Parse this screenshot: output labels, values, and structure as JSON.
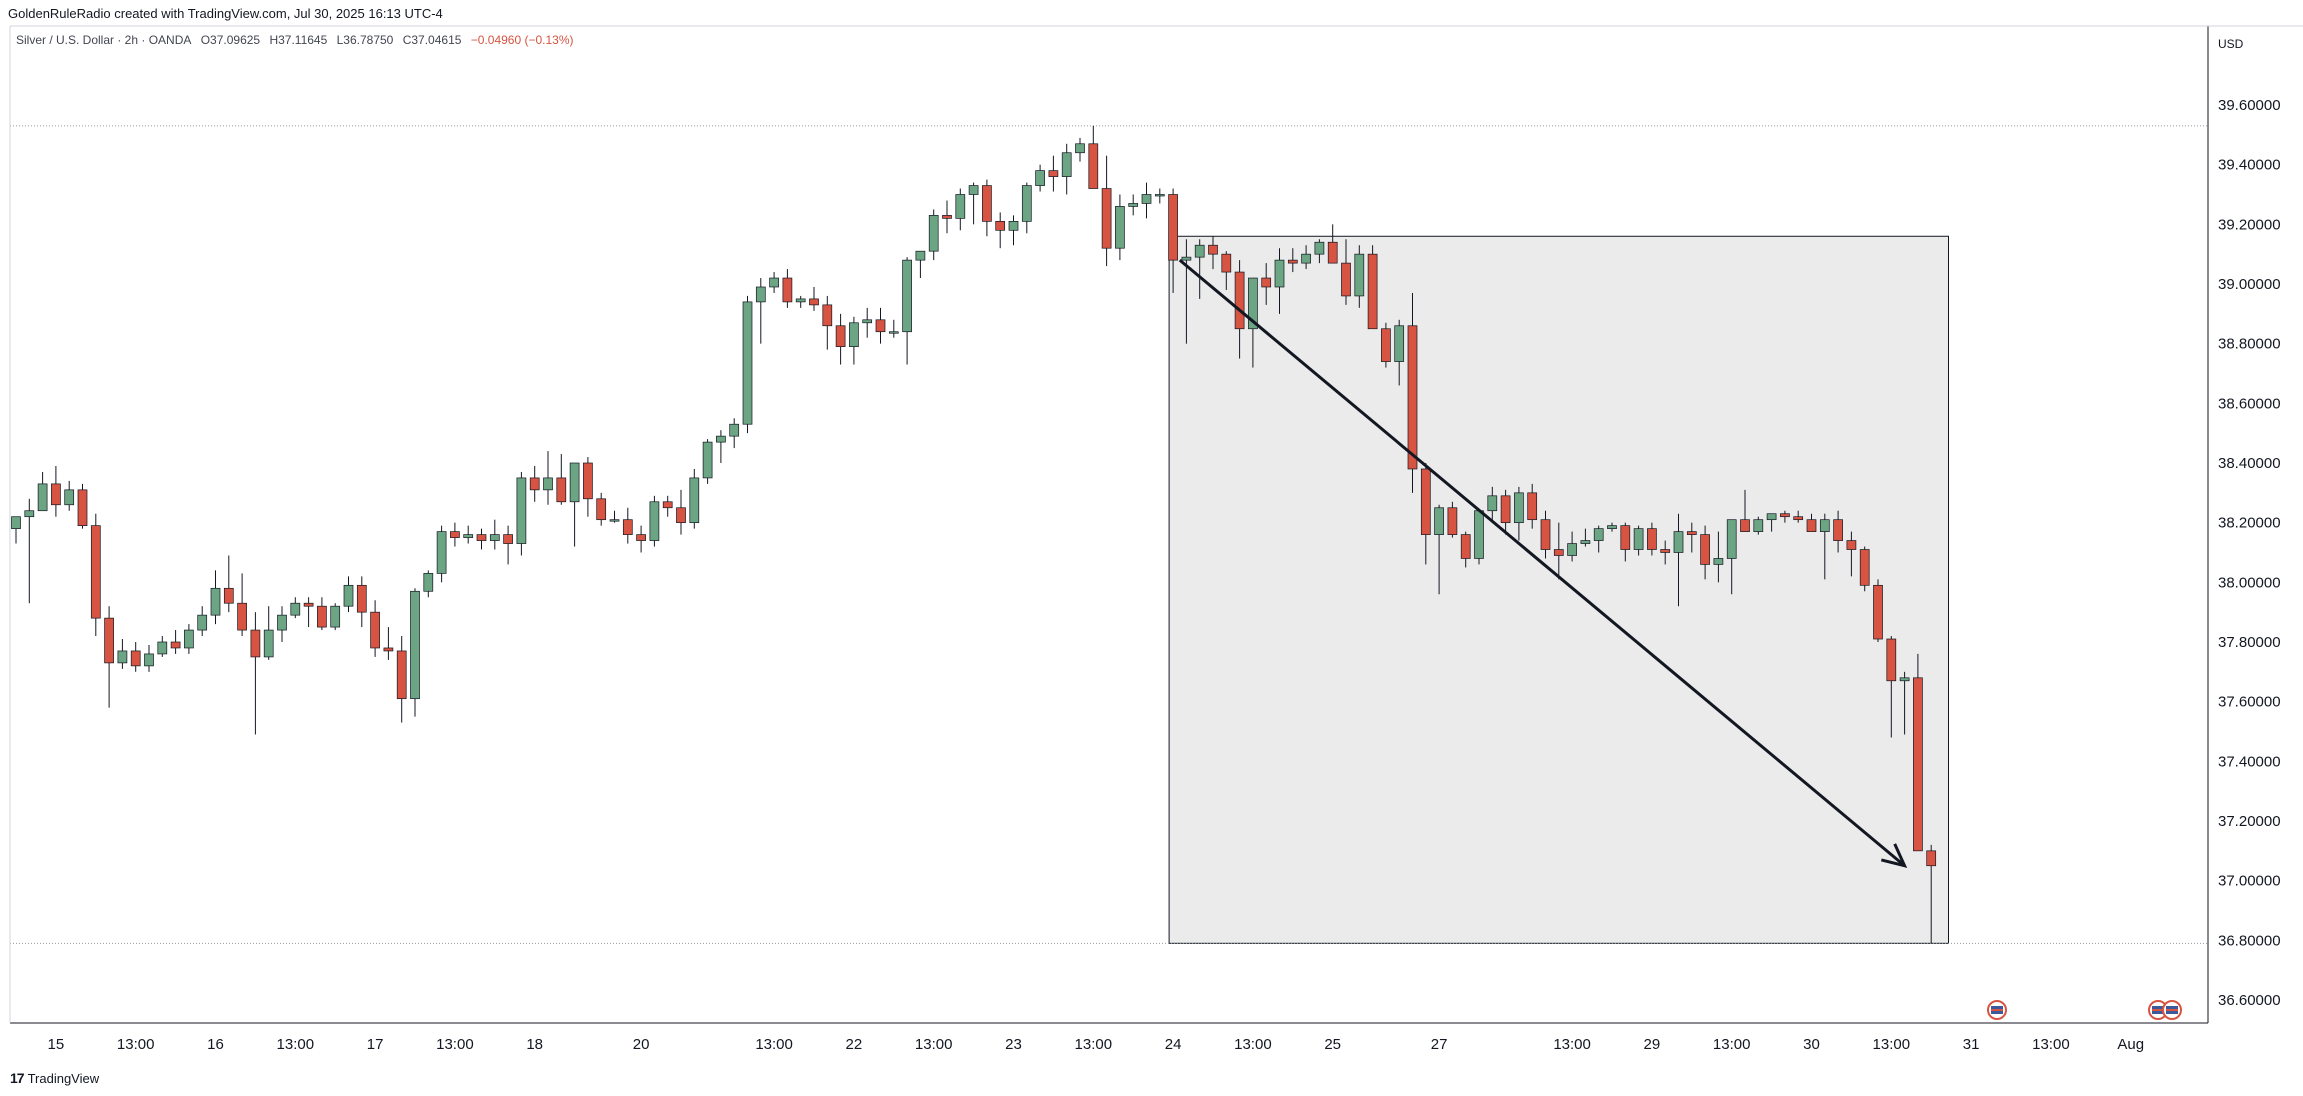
{
  "header": {
    "attribution": "GoldenRuleRadio created with TradingView.com, Jul 30, 2025 16:13 UTC-4"
  },
  "legend": {
    "symbol": "Silver / U.S. Dollar · 2h · OANDA",
    "open": "O37.09625",
    "high": "H37.11645",
    "low": "L36.78750",
    "close": "C37.04615",
    "change": "−0.04960 (−0.13%)"
  },
  "footer": {
    "brand": "TradingView",
    "logo": "17"
  },
  "colors": {
    "up": "#6ba583",
    "down": "#d75442",
    "box_fill": "#ebebeb",
    "arrow": "#131722"
  },
  "chart_data": {
    "type": "candlestick",
    "currency": "USD",
    "ylim": [
      36.5,
      39.8
    ],
    "yticks": [
      "39.60000",
      "39.40000",
      "39.20000",
      "39.00000",
      "38.80000",
      "38.60000",
      "38.40000",
      "38.20000",
      "38.00000",
      "37.80000",
      "37.60000",
      "37.40000",
      "37.20000",
      "37.00000",
      "36.80000",
      "36.60000"
    ],
    "xticks": [
      {
        "label": "15",
        "bar": 3
      },
      {
        "label": "13:00",
        "bar": 9
      },
      {
        "label": "16",
        "bar": 15
      },
      {
        "label": "13:00",
        "bar": 21
      },
      {
        "label": "17",
        "bar": 27
      },
      {
        "label": "13:00",
        "bar": 33
      },
      {
        "label": "18",
        "bar": 39
      },
      {
        "label": "20",
        "bar": 47
      },
      {
        "label": "13:00",
        "bar": 57
      },
      {
        "label": "22",
        "bar": 63
      },
      {
        "label": "13:00",
        "bar": 69
      },
      {
        "label": "23",
        "bar": 75
      },
      {
        "label": "13:00",
        "bar": 81
      },
      {
        "label": "24",
        "bar": 87
      },
      {
        "label": "13:00",
        "bar": 93
      },
      {
        "label": "25",
        "bar": 99
      },
      {
        "label": "27",
        "bar": 107
      },
      {
        "label": "13:00",
        "bar": 117
      },
      {
        "label": "29",
        "bar": 123
      },
      {
        "label": "13:00",
        "bar": 129
      },
      {
        "label": "30",
        "bar": 135
      },
      {
        "label": "13:00",
        "bar": 141
      },
      {
        "label": "31",
        "bar": 147
      },
      {
        "label": "13:00",
        "bar": 153
      },
      {
        "label": "Aug",
        "bar": 159
      }
    ],
    "reference_lines": [
      39.53,
      36.79
    ],
    "candles": [
      [
        38.18,
        38.22,
        38.13,
        38.22
      ],
      [
        38.22,
        38.28,
        37.93,
        38.24
      ],
      [
        38.24,
        38.37,
        38.24,
        38.33
      ],
      [
        38.33,
        38.39,
        38.22,
        38.26
      ],
      [
        38.26,
        38.34,
        38.24,
        38.31
      ],
      [
        38.31,
        38.33,
        38.18,
        38.19
      ],
      [
        38.19,
        38.23,
        37.82,
        37.88
      ],
      [
        37.88,
        37.92,
        37.58,
        37.73
      ],
      [
        37.73,
        37.81,
        37.71,
        37.77
      ],
      [
        37.77,
        37.8,
        37.7,
        37.72
      ],
      [
        37.72,
        37.79,
        37.7,
        37.76
      ],
      [
        37.76,
        37.82,
        37.75,
        37.8
      ],
      [
        37.8,
        37.84,
        37.76,
        37.78
      ],
      [
        37.78,
        37.86,
        37.76,
        37.84
      ],
      [
        37.84,
        37.92,
        37.82,
        37.89
      ],
      [
        37.89,
        38.04,
        37.86,
        37.98
      ],
      [
        37.98,
        38.09,
        37.9,
        37.93
      ],
      [
        37.93,
        38.03,
        37.82,
        37.84
      ],
      [
        37.84,
        37.9,
        37.49,
        37.75
      ],
      [
        37.75,
        37.92,
        37.74,
        37.84
      ],
      [
        37.84,
        37.92,
        37.8,
        37.89
      ],
      [
        37.89,
        37.95,
        37.88,
        37.93
      ],
      [
        37.93,
        37.95,
        37.85,
        37.92
      ],
      [
        37.92,
        37.95,
        37.84,
        37.85
      ],
      [
        37.85,
        37.93,
        37.84,
        37.92
      ],
      [
        37.92,
        38.02,
        37.9,
        37.99
      ],
      [
        37.99,
        38.02,
        37.85,
        37.9
      ],
      [
        37.9,
        37.94,
        37.75,
        37.78
      ],
      [
        37.78,
        37.85,
        37.74,
        37.77
      ],
      [
        37.77,
        37.82,
        37.53,
        37.61
      ],
      [
        37.61,
        37.98,
        37.55,
        37.97
      ],
      [
        37.97,
        38.04,
        37.95,
        38.03
      ],
      [
        38.03,
        38.19,
        38.0,
        38.17
      ],
      [
        38.17,
        38.2,
        38.12,
        38.15
      ],
      [
        38.15,
        38.19,
        38.13,
        38.16
      ],
      [
        38.16,
        38.18,
        38.11,
        38.14
      ],
      [
        38.14,
        38.21,
        38.11,
        38.16
      ],
      [
        38.16,
        38.19,
        38.06,
        38.13
      ],
      [
        38.13,
        38.37,
        38.09,
        38.35
      ],
      [
        38.35,
        38.39,
        38.27,
        38.31
      ],
      [
        38.31,
        38.44,
        38.26,
        38.35
      ],
      [
        38.35,
        38.43,
        38.26,
        38.27
      ],
      [
        38.27,
        38.4,
        38.12,
        38.4
      ],
      [
        38.4,
        38.42,
        38.22,
        38.28
      ],
      [
        38.28,
        38.3,
        38.19,
        38.21
      ],
      [
        38.21,
        38.24,
        38.2,
        38.21
      ],
      [
        38.21,
        38.25,
        38.13,
        38.16
      ],
      [
        38.16,
        38.19,
        38.1,
        38.14
      ],
      [
        38.14,
        38.29,
        38.12,
        38.27
      ],
      [
        38.27,
        38.29,
        38.22,
        38.25
      ],
      [
        38.25,
        38.31,
        38.16,
        38.2
      ],
      [
        38.2,
        38.38,
        38.18,
        38.35
      ],
      [
        38.35,
        38.48,
        38.33,
        38.47
      ],
      [
        38.47,
        38.51,
        38.4,
        38.49
      ],
      [
        38.49,
        38.55,
        38.45,
        38.53
      ],
      [
        38.53,
        38.96,
        38.5,
        38.94
      ],
      [
        38.94,
        39.02,
        38.8,
        38.99
      ],
      [
        38.99,
        39.04,
        38.97,
        39.02
      ],
      [
        39.02,
        39.05,
        38.92,
        38.94
      ],
      [
        38.94,
        38.96,
        38.92,
        38.95
      ],
      [
        38.95,
        38.99,
        38.91,
        38.93
      ],
      [
        38.93,
        38.96,
        38.78,
        38.86
      ],
      [
        38.86,
        38.9,
        38.73,
        38.79
      ],
      [
        38.79,
        38.89,
        38.73,
        38.87
      ],
      [
        38.87,
        38.92,
        38.82,
        38.88
      ],
      [
        38.88,
        38.92,
        38.8,
        38.84
      ],
      [
        38.84,
        38.88,
        38.82,
        38.84
      ],
      [
        38.84,
        39.09,
        38.73,
        39.08
      ],
      [
        39.08,
        39.11,
        39.02,
        39.11
      ],
      [
        39.11,
        39.25,
        39.08,
        39.23
      ],
      [
        39.23,
        39.28,
        39.17,
        39.22
      ],
      [
        39.22,
        39.32,
        39.18,
        39.3
      ],
      [
        39.3,
        39.34,
        39.2,
        39.33
      ],
      [
        39.33,
        39.35,
        39.16,
        39.21
      ],
      [
        39.21,
        39.24,
        39.12,
        39.18
      ],
      [
        39.18,
        39.23,
        39.13,
        39.21
      ],
      [
        39.21,
        39.34,
        39.17,
        39.33
      ],
      [
        39.33,
        39.4,
        39.31,
        39.38
      ],
      [
        39.38,
        39.43,
        39.31,
        39.36
      ],
      [
        39.36,
        39.47,
        39.3,
        39.44
      ],
      [
        39.44,
        39.49,
        39.41,
        39.47
      ],
      [
        39.47,
        39.53,
        39.34,
        39.32
      ],
      [
        39.32,
        39.43,
        39.06,
        39.12
      ],
      [
        39.12,
        39.3,
        39.08,
        39.26
      ],
      [
        39.26,
        39.3,
        39.23,
        39.27
      ],
      [
        39.27,
        39.34,
        39.22,
        39.3
      ],
      [
        39.3,
        39.32,
        39.27,
        39.3
      ],
      [
        39.3,
        39.32,
        38.97,
        39.08
      ],
      [
        39.08,
        39.15,
        38.8,
        39.09
      ],
      [
        39.09,
        39.15,
        38.95,
        39.13
      ],
      [
        39.13,
        39.16,
        39.05,
        39.1
      ],
      [
        39.1,
        39.11,
        38.98,
        39.04
      ],
      [
        39.04,
        39.08,
        38.75,
        38.85
      ],
      [
        38.85,
        39.02,
        38.72,
        39.02
      ],
      [
        39.02,
        39.07,
        38.93,
        38.99
      ],
      [
        38.99,
        39.12,
        38.9,
        39.08
      ],
      [
        39.08,
        39.12,
        39.04,
        39.07
      ],
      [
        39.07,
        39.13,
        39.05,
        39.1
      ],
      [
        39.1,
        39.15,
        39.07,
        39.14
      ],
      [
        39.14,
        39.2,
        39.08,
        39.07
      ],
      [
        39.07,
        39.15,
        38.93,
        38.96
      ],
      [
        38.96,
        39.13,
        38.92,
        39.1
      ],
      [
        39.1,
        39.13,
        38.88,
        38.85
      ],
      [
        38.85,
        38.87,
        38.72,
        38.74
      ],
      [
        38.74,
        38.88,
        38.66,
        38.86
      ],
      [
        38.86,
        38.97,
        38.3,
        38.38
      ],
      [
        38.38,
        38.4,
        38.06,
        38.16
      ],
      [
        38.16,
        38.26,
        37.96,
        38.25
      ],
      [
        38.25,
        38.27,
        38.15,
        38.16
      ],
      [
        38.16,
        38.17,
        38.05,
        38.08
      ],
      [
        38.08,
        38.24,
        38.06,
        38.24
      ],
      [
        38.24,
        38.32,
        38.2,
        38.29
      ],
      [
        38.29,
        38.31,
        38.16,
        38.2
      ],
      [
        38.2,
        38.32,
        38.14,
        38.3
      ],
      [
        38.3,
        38.33,
        38.18,
        38.21
      ],
      [
        38.21,
        38.24,
        38.08,
        38.11
      ],
      [
        38.11,
        38.2,
        38.01,
        38.09
      ],
      [
        38.09,
        38.17,
        38.07,
        38.13
      ],
      [
        38.13,
        38.18,
        38.12,
        38.14
      ],
      [
        38.14,
        38.19,
        38.1,
        38.18
      ],
      [
        38.18,
        38.2,
        38.17,
        38.19
      ],
      [
        38.19,
        38.2,
        38.07,
        38.11
      ],
      [
        38.11,
        38.19,
        38.09,
        38.18
      ],
      [
        38.18,
        38.2,
        38.09,
        38.11
      ],
      [
        38.11,
        38.14,
        38.06,
        38.1
      ],
      [
        38.1,
        38.23,
        37.92,
        38.17
      ],
      [
        38.17,
        38.2,
        38.1,
        38.16
      ],
      [
        38.16,
        38.19,
        38.01,
        38.06
      ],
      [
        38.06,
        38.17,
        38.0,
        38.08
      ],
      [
        38.08,
        38.21,
        37.96,
        38.21
      ],
      [
        38.21,
        38.31,
        38.18,
        38.17
      ],
      [
        38.17,
        38.22,
        38.16,
        38.21
      ],
      [
        38.21,
        38.23,
        38.17,
        38.23
      ],
      [
        38.23,
        38.24,
        38.2,
        38.22
      ],
      [
        38.22,
        38.24,
        38.2,
        38.21
      ],
      [
        38.21,
        38.23,
        38.18,
        38.17
      ],
      [
        38.17,
        38.23,
        38.01,
        38.21
      ],
      [
        38.21,
        38.24,
        38.1,
        38.14
      ],
      [
        38.14,
        38.17,
        38.02,
        38.11
      ],
      [
        38.11,
        38.12,
        37.97,
        37.99
      ],
      [
        37.99,
        38.01,
        37.8,
        37.81
      ],
      [
        37.81,
        37.82,
        37.48,
        37.67
      ],
      [
        37.67,
        37.7,
        37.49,
        37.68
      ],
      [
        37.68,
        37.76,
        37.1,
        37.1
      ],
      [
        37.1,
        37.12,
        36.79,
        37.05
      ]
    ],
    "annotation": {
      "type": "rectangle-with-arrow",
      "box": {
        "bar_start": 87,
        "bar_end": 145,
        "top": 39.16,
        "bottom": 36.79
      },
      "arrow": {
        "from": {
          "bar": 87.5,
          "price": 39.08
        },
        "to": {
          "bar": 142,
          "price": 37.05
        }
      }
    }
  }
}
